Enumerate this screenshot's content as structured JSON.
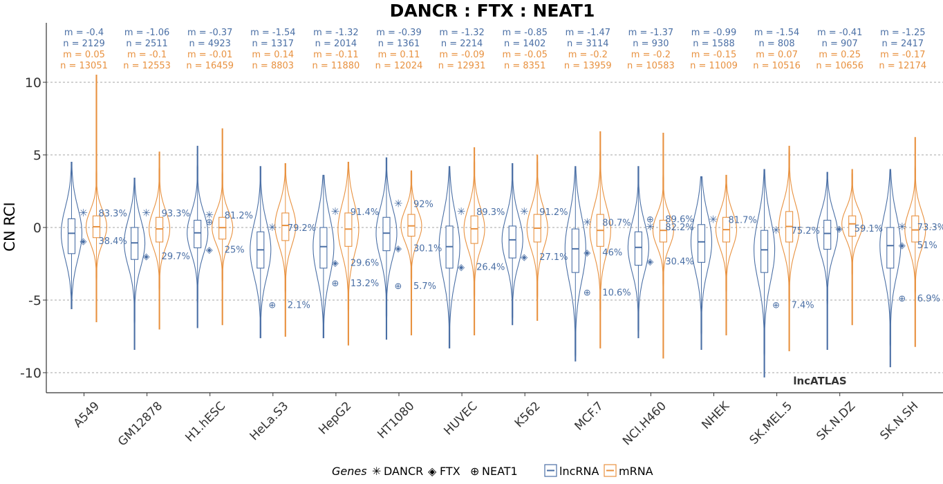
{
  "chart_data": {
    "type": "violin-box",
    "title": "DANCR : FTX : NEAT1",
    "ylabel": "CN RCI",
    "ylim": [
      -11,
      14
    ],
    "yticks": [
      10,
      5,
      0,
      -5,
      -10
    ],
    "grid": "horizontal-dashed",
    "watermark": "lncATLAS",
    "colors": {
      "lncRNA": "#4a6fa5",
      "mRNA": "#e8913f"
    },
    "legend": {
      "placement": "bottom",
      "genes_title": "Genes",
      "genes": [
        {
          "name": "DANCR",
          "symbol": "✳"
        },
        {
          "name": "FTX",
          "symbol": "◈"
        },
        {
          "name": "NEAT1",
          "symbol": "⊕"
        }
      ],
      "types": [
        "lncRNA",
        "mRNA"
      ]
    },
    "cells": [
      {
        "name": "A549",
        "lnc": {
          "m": "-0.4",
          "n": "2129",
          "q1": -1.8,
          "med": -0.4,
          "q3": 0.6,
          "min": -5.6,
          "max": 4.5
        },
        "mrna": {
          "m": "0.05",
          "n": "13051",
          "q1": -0.7,
          "med": 0.05,
          "q3": 0.8,
          "min": -6.5,
          "max": 10.5
        },
        "genes": {
          "DANCR": {
            "y": 1.0,
            "pct": "83.3%"
          },
          "FTX": {
            "y": -0.9,
            "pct": "38.4%"
          }
        }
      },
      {
        "name": "GM12878",
        "lnc": {
          "m": "-1.06",
          "n": "2511",
          "q1": -2.2,
          "med": -1.06,
          "q3": 0.0,
          "min": -8.4,
          "max": 3.4
        },
        "mrna": {
          "m": "-0.1",
          "n": "12553",
          "q1": -1.0,
          "med": -0.1,
          "q3": 0.7,
          "min": -7.0,
          "max": 5.2
        },
        "genes": {
          "DANCR": {
            "y": 1.0,
            "pct": "93.3%"
          },
          "FTX": {
            "y": -1.95,
            "pct": "29.7%"
          }
        }
      },
      {
        "name": "H1.hESC",
        "lnc": {
          "m": "-0.37",
          "n": "4923",
          "q1": -1.4,
          "med": -0.37,
          "q3": 0.5,
          "min": -6.9,
          "max": 5.6
        },
        "mrna": {
          "m": "-0.01",
          "n": "16459",
          "q1": -0.8,
          "med": -0.01,
          "q3": 0.7,
          "min": -6.7,
          "max": 6.8
        },
        "genes": {
          "DANCR": {
            "y": 0.85,
            "pct": "81.2%"
          },
          "FTX": {
            "y": -1.5,
            "pct": "25%"
          },
          "NEAT1": {
            "y": 0.4,
            "pct": ""
          }
        }
      },
      {
        "name": "HeLa.S3",
        "lnc": {
          "m": "-1.54",
          "n": "1317",
          "q1": -2.8,
          "med": -1.54,
          "q3": -0.3,
          "min": -7.6,
          "max": 4.2
        },
        "mrna": {
          "m": "0.14",
          "n": "8803",
          "q1": -0.9,
          "med": 0.14,
          "q3": 1.0,
          "min": -7.5,
          "max": 4.4
        },
        "genes": {
          "DANCR": {
            "y": 0.0,
            "pct": "79.2%"
          },
          "NEAT1": {
            "y": -5.3,
            "pct": "2.1%"
          }
        }
      },
      {
        "name": "HepG2",
        "lnc": {
          "m": "-1.32",
          "n": "2014",
          "q1": -2.8,
          "med": -1.32,
          "q3": 0.0,
          "min": -7.6,
          "max": 3.6
        },
        "mrna": {
          "m": "-0.11",
          "n": "11880",
          "q1": -1.3,
          "med": -0.11,
          "q3": 1.0,
          "min": -8.1,
          "max": 4.5
        },
        "genes": {
          "DANCR": {
            "y": 1.1,
            "pct": "91.4%"
          },
          "FTX": {
            "y": -2.4,
            "pct": "29.6%"
          },
          "NEAT1": {
            "y": -3.8,
            "pct": "13.2%"
          }
        }
      },
      {
        "name": "HT1080",
        "lnc": {
          "m": "-0.39",
          "n": "1361",
          "q1": -1.6,
          "med": -0.39,
          "q3": 0.7,
          "min": -7.7,
          "max": 4.8
        },
        "mrna": {
          "m": "0.11",
          "n": "12024",
          "q1": -0.6,
          "med": 0.11,
          "q3": 0.9,
          "min": -7.4,
          "max": 3.9
        },
        "genes": {
          "DANCR": {
            "y": 1.65,
            "pct": "92%"
          },
          "FTX": {
            "y": -1.4,
            "pct": "30.1%"
          },
          "NEAT1": {
            "y": -4.0,
            "pct": "5.7%"
          }
        }
      },
      {
        "name": "HUVEC",
        "lnc": {
          "m": "-1.32",
          "n": "2214",
          "q1": -2.8,
          "med": -1.32,
          "q3": 0.1,
          "min": -8.3,
          "max": 4.2
        },
        "mrna": {
          "m": "-0.09",
          "n": "12931",
          "q1": -1.1,
          "med": -0.09,
          "q3": 0.8,
          "min": -7.4,
          "max": 5.5
        },
        "genes": {
          "DANCR": {
            "y": 1.1,
            "pct": "89.3%"
          },
          "FTX": {
            "y": -2.7,
            "pct": "26.4%"
          }
        }
      },
      {
        "name": "K562",
        "lnc": {
          "m": "-0.85",
          "n": "1402",
          "q1": -2.1,
          "med": -0.85,
          "q3": 0.1,
          "min": -6.7,
          "max": 4.4
        },
        "mrna": {
          "m": "-0.05",
          "n": "8351",
          "q1": -1.0,
          "med": -0.05,
          "q3": 0.9,
          "min": -6.4,
          "max": 5.0
        },
        "genes": {
          "DANCR": {
            "y": 1.1,
            "pct": "91.2%"
          },
          "FTX": {
            "y": -2.0,
            "pct": "27.1%"
          }
        }
      },
      {
        "name": "MCF.7",
        "lnc": {
          "m": "-1.47",
          "n": "3114",
          "q1": -3.1,
          "med": -1.47,
          "q3": -0.1,
          "min": -9.2,
          "max": 4.2
        },
        "mrna": {
          "m": "-0.2",
          "n": "13959",
          "q1": -1.3,
          "med": -0.2,
          "q3": 0.9,
          "min": -8.3,
          "max": 6.6
        },
        "genes": {
          "DANCR": {
            "y": 0.35,
            "pct": "80.7%"
          },
          "FTX": {
            "y": -1.7,
            "pct": "46%"
          },
          "NEAT1": {
            "y": -4.45,
            "pct": "10.6%"
          }
        }
      },
      {
        "name": "NCI.H460",
        "lnc": {
          "m": "-1.37",
          "n": "930",
          "q1": -2.6,
          "med": -1.37,
          "q3": -0.3,
          "min": -7.6,
          "max": 4.2
        },
        "mrna": {
          "m": "-0.2",
          "n": "10583",
          "q1": -1.0,
          "med": -0.2,
          "q3": 0.5,
          "min": -9.0,
          "max": 6.5
        },
        "genes": {
          "DANCR": {
            "y": 0.05,
            "pct": "82.2%"
          },
          "FTX": {
            "y": -2.3,
            "pct": "30.4%"
          },
          "NEAT1": {
            "y": 0.6,
            "pct": "89.6%"
          }
        }
      },
      {
        "name": "NHEK",
        "lnc": {
          "m": "-0.99",
          "n": "1588",
          "q1": -2.4,
          "med": -0.99,
          "q3": 0.2,
          "min": -8.4,
          "max": 3.5
        },
        "mrna": {
          "m": "-0.15",
          "n": "11009",
          "q1": -1.0,
          "med": -0.15,
          "q3": 0.7,
          "min": -7.4,
          "max": 3.6
        },
        "genes": {
          "DANCR": {
            "y": 0.55,
            "pct": "81.7%"
          }
        }
      },
      {
        "name": "SK.MEL.5",
        "lnc": {
          "m": "-1.54",
          "n": "808",
          "q1": -3.1,
          "med": -1.54,
          "q3": -0.2,
          "min": -10.3,
          "max": 4.0
        },
        "mrna": {
          "m": "0.07",
          "n": "10516",
          "q1": -1.0,
          "med": 0.07,
          "q3": 1.1,
          "min": -8.5,
          "max": 5.6
        },
        "genes": {
          "DANCR": {
            "y": -0.2,
            "pct": "75.2%"
          },
          "NEAT1": {
            "y": -5.3,
            "pct": "7.4%"
          }
        }
      },
      {
        "name": "SK.N.DZ",
        "lnc": {
          "m": "-0.41",
          "n": "907",
          "q1": -1.5,
          "med": -0.41,
          "q3": 0.5,
          "min": -8.4,
          "max": 3.8
        },
        "mrna": {
          "m": "0.25",
          "n": "10656",
          "q1": -0.6,
          "med": 0.25,
          "q3": 0.8,
          "min": -6.7,
          "max": 4.0
        },
        "genes": {
          "FTX": {
            "y": -0.05,
            "pct": "59.1%"
          }
        }
      },
      {
        "name": "SK.N.SH",
        "lnc": {
          "m": "-1.25",
          "n": "2417",
          "q1": -2.8,
          "med": -1.25,
          "q3": 0.0,
          "min": -9.6,
          "max": 4.0
        },
        "mrna": {
          "m": "-0.17",
          "n": "12174",
          "q1": -1.0,
          "med": -0.17,
          "q3": 0.8,
          "min": -8.2,
          "max": 6.2
        },
        "genes": {
          "DANCR": {
            "y": 0.05,
            "pct": "73.3%"
          },
          "FTX": {
            "y": -1.2,
            "pct": "51%"
          },
          "NEAT1": {
            "y": -4.85,
            "pct": "6.9%"
          }
        }
      }
    ]
  }
}
